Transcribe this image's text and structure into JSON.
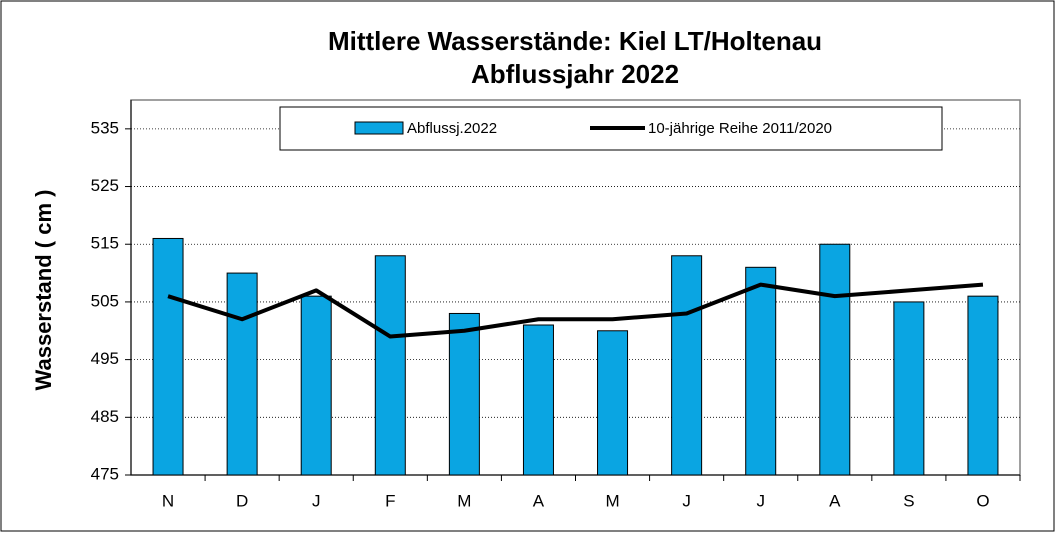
{
  "chart_data": {
    "type": "bar",
    "title": "Mittlere Wasserstände: Kiel LT/Holtenau",
    "subtitle": "Abflussjahr 2022",
    "y_label": "Wasserstand ( cm )",
    "categories": [
      "N",
      "D",
      "J",
      "F",
      "M",
      "A",
      "M",
      "J",
      "J",
      "A",
      "S",
      "O"
    ],
    "series": [
      {
        "name": "Abflussj.2022",
        "type": "bar",
        "color": "#0aa5e2",
        "values": [
          516,
          510,
          506,
          513,
          503,
          501,
          500,
          513,
          511,
          515,
          505,
          506
        ]
      },
      {
        "name": "10-jährige Reihe  2011/2020",
        "type": "line",
        "color": "#000000",
        "values": [
          506,
          502,
          507,
          499,
          500,
          502,
          502,
          503,
          508,
          506,
          507,
          508
        ]
      }
    ],
    "ylim": [
      475,
      540
    ],
    "yticks": [
      475,
      485,
      495,
      505,
      515,
      525,
      535
    ],
    "grid": true
  }
}
